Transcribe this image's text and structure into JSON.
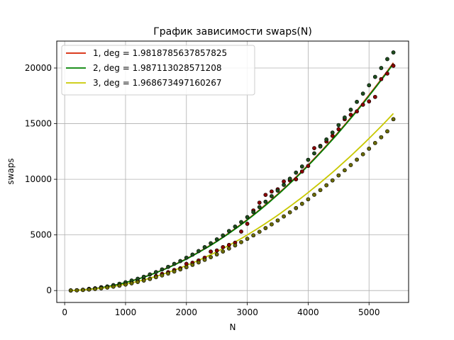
{
  "chart_data": {
    "type": "scatter",
    "title": "График зависимости swaps(N)",
    "xlabel": "N",
    "ylabel": "swaps",
    "xlim": [
      -130,
      5650
    ],
    "ylim": [
      -1070,
      22420
    ],
    "xticks": [
      0,
      1000,
      2000,
      3000,
      4000,
      5000
    ],
    "yticks": [
      0,
      5000,
      10000,
      15000,
      20000
    ],
    "grid": true,
    "legend_position": "top-left",
    "series": [
      {
        "name": "1, deg = 1.9818785637857825",
        "line_color": "#d62000",
        "marker_color": "#8b0000",
        "fit": {
          "a": 0.00082,
          "exp": 1.9818785637857825,
          "x_start": 100,
          "x_end": 5400
        },
        "x": [
          100,
          200,
          300,
          400,
          500,
          600,
          700,
          800,
          900,
          1000,
          1100,
          1200,
          1300,
          1400,
          1500,
          1600,
          1700,
          1800,
          1900,
          2000,
          2100,
          2200,
          2300,
          2400,
          2500,
          2600,
          2700,
          2800,
          2900,
          3000,
          3100,
          3200,
          3300,
          3400,
          3500,
          3600,
          3700,
          3800,
          3900,
          4000,
          4100,
          4200,
          4300,
          4400,
          4500,
          4600,
          4700,
          4800,
          4900,
          5000,
          5100,
          5200,
          5300,
          5400
        ],
        "y": [
          10,
          30,
          70,
          150,
          200,
          300,
          330,
          410,
          500,
          580,
          700,
          850,
          960,
          1050,
          1300,
          1500,
          1650,
          1850,
          2000,
          2400,
          2500,
          2700,
          2950,
          3500,
          3600,
          3900,
          4100,
          4300,
          5300,
          6000,
          7200,
          7900,
          8600,
          8900,
          9100,
          9800,
          9900,
          10000,
          10700,
          11200,
          12800,
          13000,
          13400,
          13900,
          14500,
          15400,
          15800,
          16100,
          16700,
          17000,
          17400,
          19000,
          19500,
          20200
        ]
      },
      {
        "name": "2, deg = 1.987113028571208",
        "line_color": "#008000",
        "marker_color": "#1e4d1e",
        "fit": {
          "a": 0.000781,
          "exp": 1.987113028571208,
          "x_start": 100,
          "x_end": 5400
        },
        "x": [
          100,
          200,
          300,
          400,
          500,
          600,
          700,
          800,
          900,
          1000,
          1100,
          1200,
          1300,
          1400,
          1500,
          1600,
          1700,
          1800,
          1900,
          2000,
          2100,
          2200,
          2300,
          2400,
          2500,
          2600,
          2700,
          2800,
          2900,
          3000,
          3100,
          3200,
          3300,
          3400,
          3500,
          3600,
          3700,
          3800,
          3900,
          4000,
          4100,
          4200,
          4300,
          4400,
          4500,
          4600,
          4700,
          4800,
          4900,
          5000,
          5100,
          5200,
          5300,
          5400
        ],
        "y": [
          10,
          30,
          70,
          130,
          190,
          270,
          370,
          490,
          610,
          740,
          900,
          1060,
          1240,
          1450,
          1660,
          1900,
          2130,
          2400,
          2650,
          2950,
          3230,
          3550,
          3900,
          4250,
          4600,
          4950,
          5350,
          5750,
          6150,
          6600,
          7050,
          7500,
          7980,
          8480,
          8980,
          9500,
          10050,
          10600,
          11150,
          11750,
          12330,
          12950,
          13580,
          14200,
          14870,
          15550,
          16250,
          16960,
          17700,
          18450,
          19200,
          20000,
          20800,
          21400
        ]
      },
      {
        "name": "3, deg = 1.968673497160267",
        "line_color": "#c8c800",
        "marker_color": "#6b6b00",
        "fit": {
          "a": 0.000714,
          "exp": 1.968673497160267,
          "x_start": 100,
          "x_end": 5400
        },
        "x": [
          100,
          200,
          300,
          400,
          500,
          600,
          700,
          800,
          900,
          1000,
          1100,
          1200,
          1300,
          1400,
          1500,
          1600,
          1700,
          1800,
          1900,
          2000,
          2100,
          2200,
          2300,
          2400,
          2500,
          2600,
          2700,
          2800,
          2900,
          3000,
          3100,
          3200,
          3300,
          3400,
          3500,
          3600,
          3700,
          3800,
          3900,
          4000,
          4100,
          4200,
          4300,
          4400,
          4500,
          4600,
          4700,
          4800,
          4900,
          5000,
          5100,
          5200,
          5300,
          5400
        ],
        "y": [
          10,
          20,
          50,
          90,
          140,
          200,
          270,
          350,
          440,
          540,
          650,
          770,
          900,
          1040,
          1200,
          1360,
          1530,
          1710,
          1900,
          2100,
          2310,
          2530,
          2760,
          3000,
          3250,
          3510,
          3780,
          4060,
          4350,
          4650,
          4960,
          5280,
          5610,
          5950,
          6300,
          6660,
          7030,
          7410,
          7800,
          8200,
          8610,
          9030,
          9460,
          9900,
          10350,
          10810,
          11280,
          11760,
          12250,
          12750,
          13260,
          13780,
          14310,
          15400
        ]
      }
    ]
  }
}
